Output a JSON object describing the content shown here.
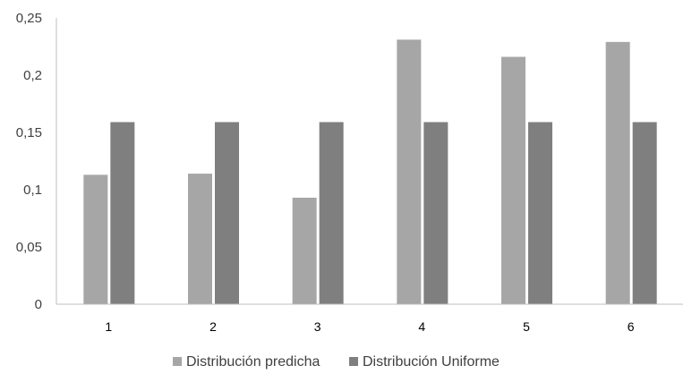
{
  "chart_data": {
    "type": "bar",
    "categories": [
      "1",
      "2",
      "3",
      "4",
      "5",
      "6"
    ],
    "series": [
      {
        "name": "Distribución predicha",
        "color": "#a6a6a6",
        "values": [
          0.113,
          0.114,
          0.093,
          0.231,
          0.216,
          0.229
        ]
      },
      {
        "name": "Distribución Uniforme",
        "color": "#7f7f7f",
        "values": [
          0.159,
          0.159,
          0.159,
          0.159,
          0.159,
          0.159
        ]
      }
    ],
    "ylim": [
      0,
      0.25
    ],
    "yticks": [
      "0",
      "0,05",
      "0,1",
      "0,15",
      "0,2",
      "0,25"
    ],
    "grid": false,
    "legend_position": "bottom",
    "axis_color": "#bfbfbf"
  }
}
